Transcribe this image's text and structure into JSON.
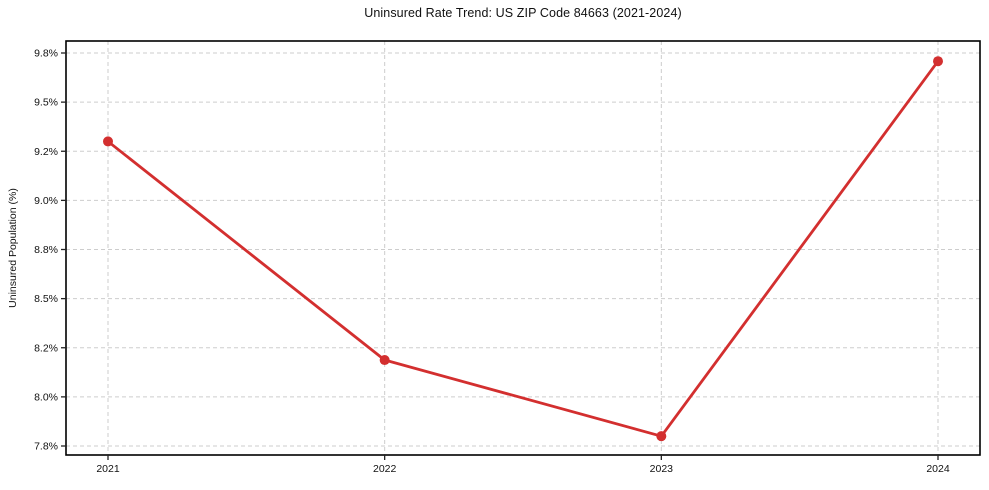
{
  "chart_data": {
    "type": "line",
    "title": "Uninsured Rate Trend: US ZIP Code 84663 (2021-2024)",
    "xlabel": "",
    "ylabel": "Uninsured Population (%)",
    "x": [
      "2021",
      "2022",
      "2023",
      "2024"
    ],
    "values": [
      9.26,
      8.15,
      7.84,
      9.75
    ],
    "yticks": {
      "values": [
        7.8,
        8.0,
        8.2,
        8.5,
        8.8,
        9.0,
        9.2,
        9.5,
        9.8
      ],
      "labels": [
        "7.8%",
        "8.0%",
        "8.2%",
        "8.5%",
        "8.8%",
        "9.0%",
        "9.2%",
        "9.5%",
        "9.8%"
      ]
    },
    "grid": "dashed",
    "legend": "none",
    "colors": {
      "line": "#d32f2f",
      "marker": "#d32f2f",
      "grid": "#cdcdcd",
      "spine": "#000000",
      "tick": "#222222",
      "text": "#111111",
      "background": "#ffffff"
    }
  }
}
